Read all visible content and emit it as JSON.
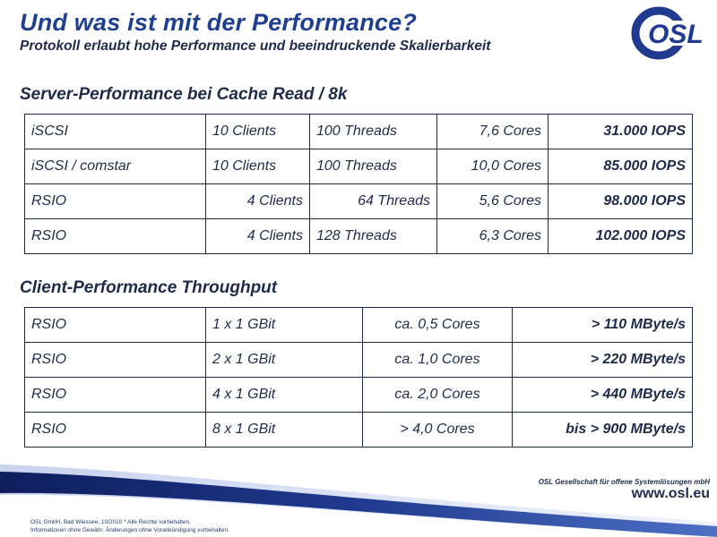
{
  "slide": {
    "title": "Und was ist mit der Performance?",
    "subtitle": "Protokoll erlaubt hohe Performance und beeindruckende Skalierbarkeit",
    "logo_text": "OSL",
    "colors": {
      "title": "#1f3f8f",
      "text": "#1f2b4a",
      "swoosh": "#1f3a8f"
    }
  },
  "server_section": {
    "heading": "Server-Performance bei Cache Read / 8k",
    "rows": [
      {
        "protocol": "iSCSI",
        "clients": "10 Clients",
        "threads": "100 Threads",
        "cores": "7,6 Cores",
        "iops": "31.000 IOPS"
      },
      {
        "protocol": "iSCSI / comstar",
        "clients": "10 Clients",
        "threads": "100 Threads",
        "cores": "10,0 Cores",
        "iops": "85.000 IOPS"
      },
      {
        "protocol": "RSIO",
        "clients": "4 Clients",
        "threads": "64 Threads",
        "cores": "5,6 Cores",
        "iops": "98.000 IOPS"
      },
      {
        "protocol": "RSIO",
        "clients": "4 Clients",
        "threads": "128 Threads",
        "cores": "6,3 Cores",
        "iops": "102.000 IOPS"
      }
    ]
  },
  "client_section": {
    "heading": "Client-Performance Throughput",
    "rows": [
      {
        "protocol": "RSIO",
        "links": "1 x 1 GBit",
        "cores": "ca. 0,5 Cores",
        "throughput": "> 110 MByte/s"
      },
      {
        "protocol": "RSIO",
        "links": "2 x 1 GBit",
        "cores": "ca. 1,0 Cores",
        "throughput": "> 220 MByte/s"
      },
      {
        "protocol": "RSIO",
        "links": "4 x 1 GBit",
        "cores": "ca. 2,0 Cores",
        "throughput": "> 440 MByte/s"
      },
      {
        "protocol": "RSIO",
        "links": "8 x 1 GBit",
        "cores": ">  4,0 Cores",
        "throughput": "bis > 900 MByte/s"
      }
    ]
  },
  "footer": {
    "company": "OSL Gesellschaft für offene Systemlösungen mbH",
    "url": "www.osl.eu",
    "legal_line1": "OSL GmbH, Bad Wiessee, 10/2010   *   Alle Rechte vorbehalten.",
    "legal_line2": "Informationen ohne Gewähr. Änderungen ohne Vorankündigung vorbehalten."
  }
}
